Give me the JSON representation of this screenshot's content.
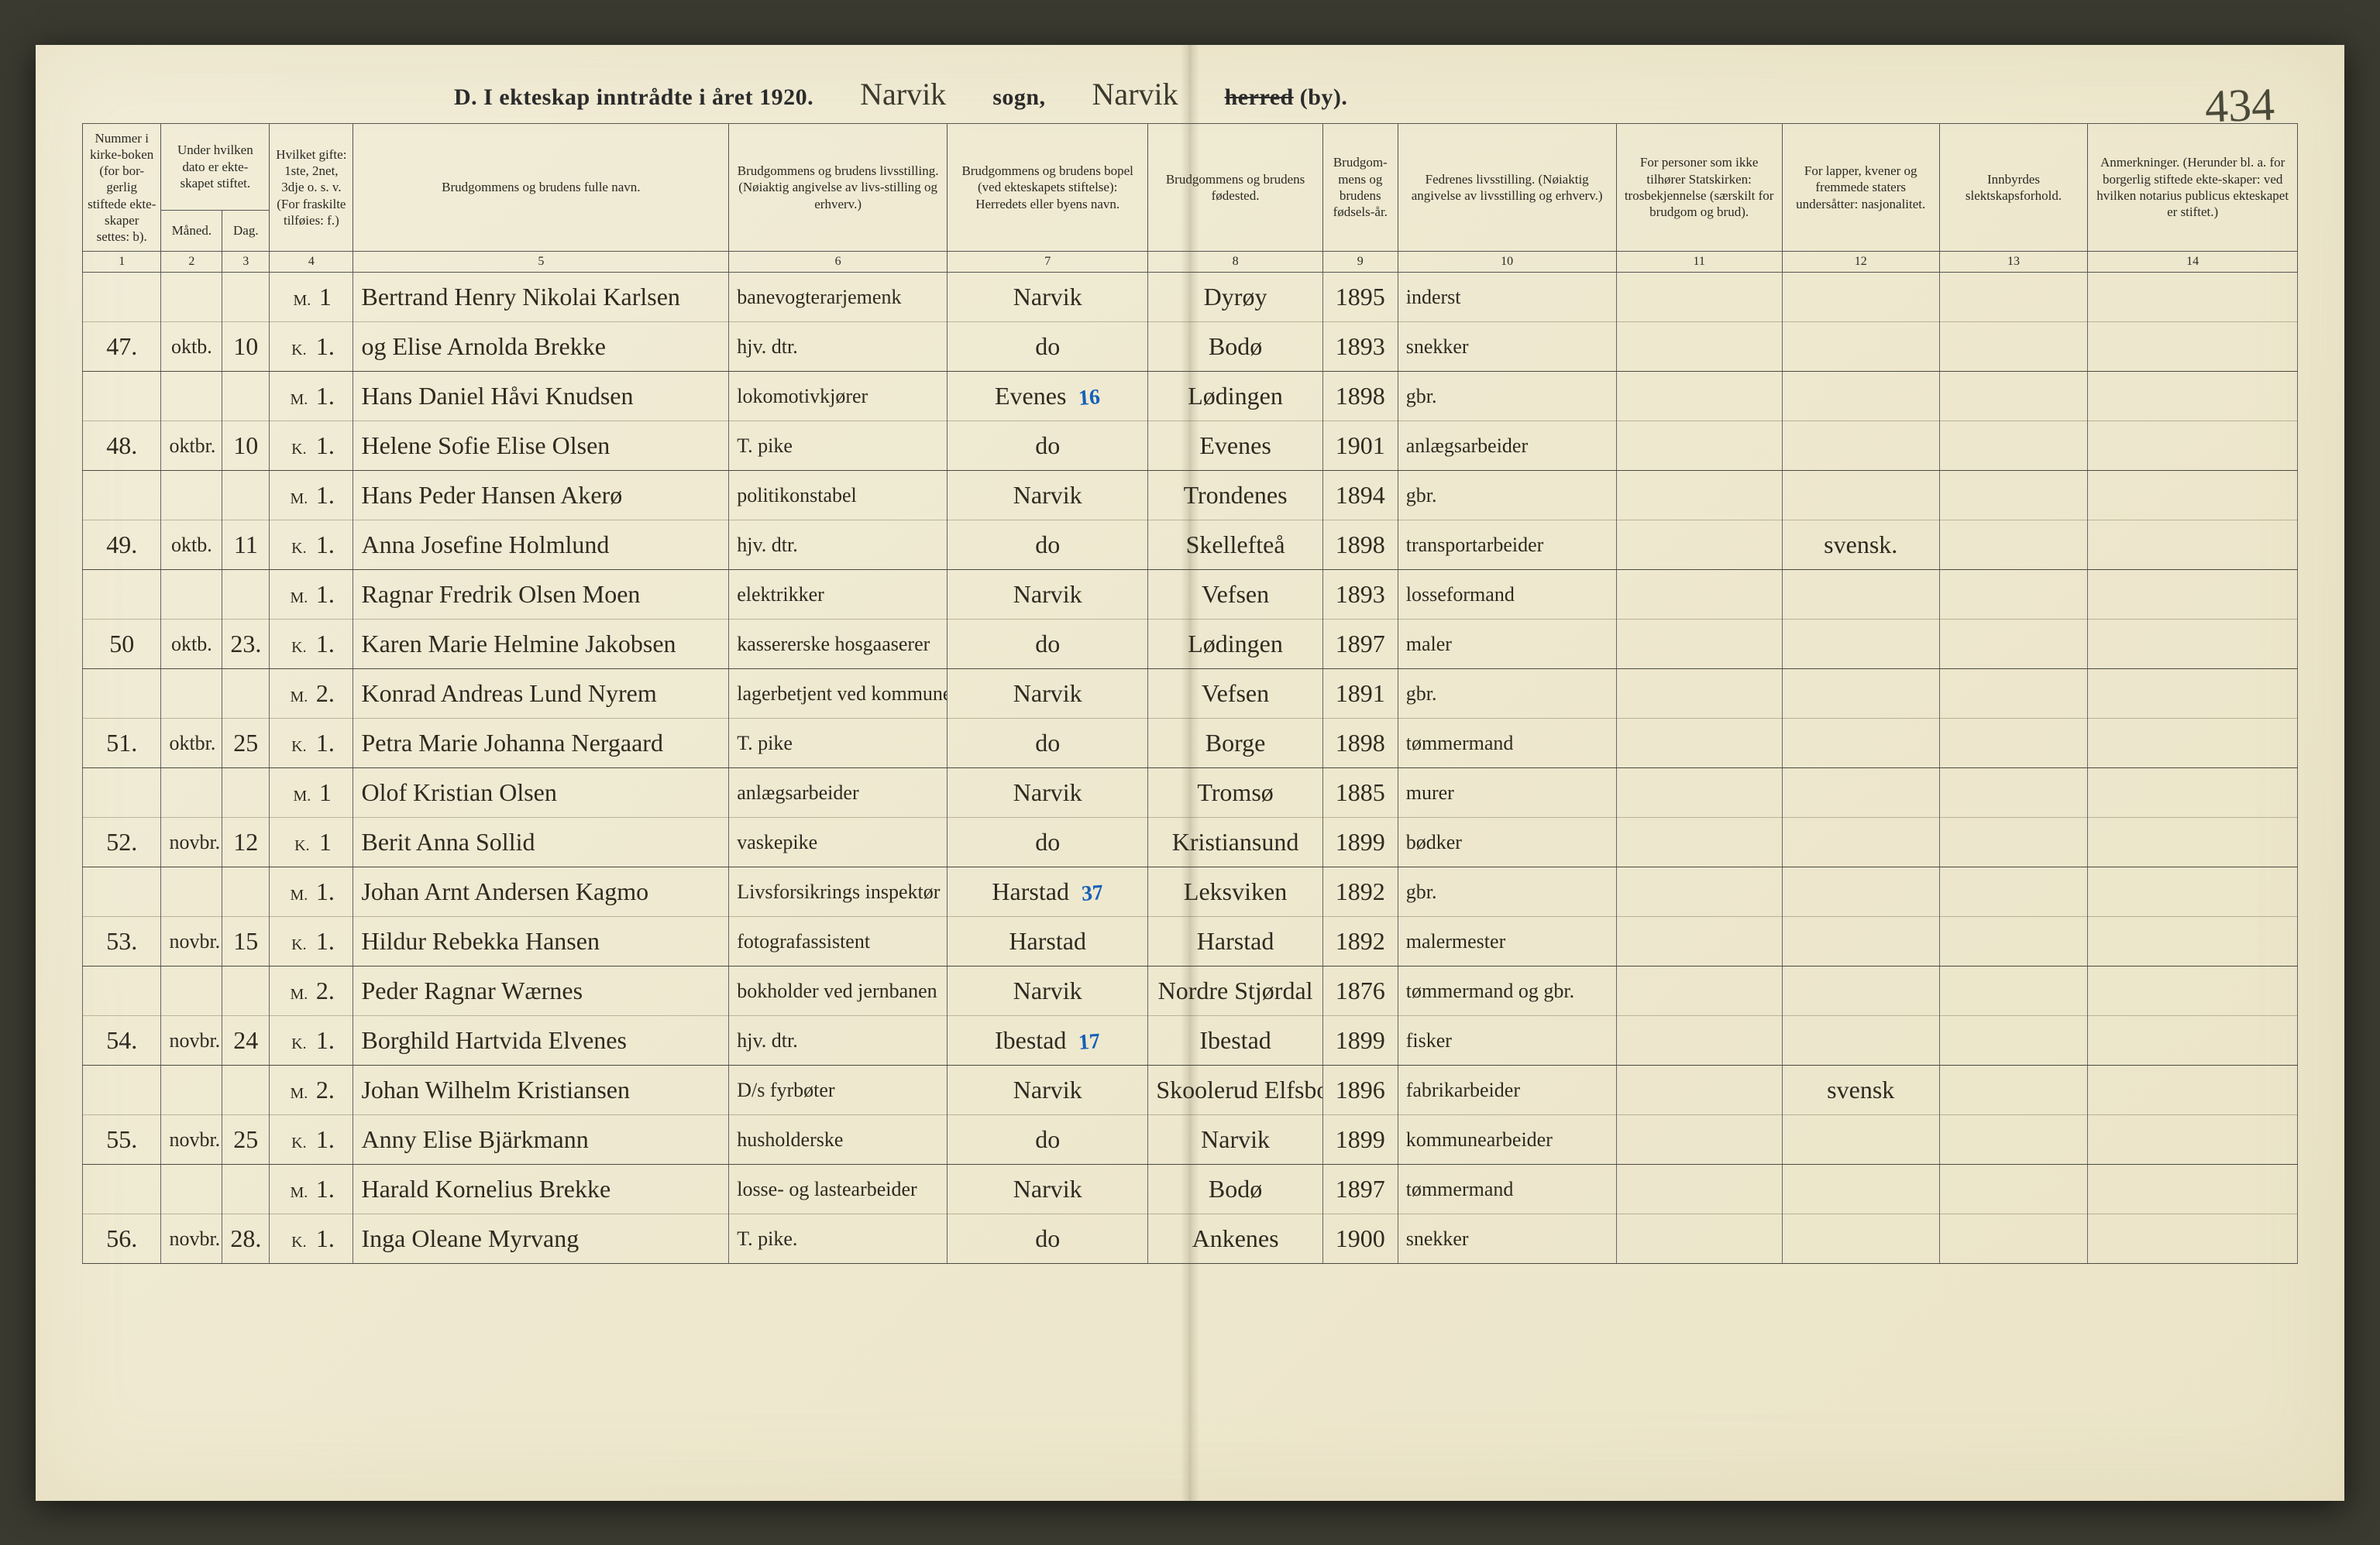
{
  "page_number_handwritten": "434",
  "header": {
    "printed_left": "D.  I ekteskap inntrådte i året 1920.",
    "sogn_value": "Narvik",
    "sogn_label": "sogn,",
    "herred_value": "Narvik",
    "herred_label_strike": "herred",
    "herred_label_tail": " (by)."
  },
  "columns": {
    "c1": "Nummer i kirke-boken (for bor-gerlig stiftede ekte-skaper settes: b).",
    "c2g": "Under hvilken dato er ekte-skapet stiftet.",
    "c2": "Måned.",
    "c3": "Dag.",
    "c4": "Hvilket gifte: 1ste, 2net, 3dje o. s. v. (For fraskilte tilføies: f.)",
    "c5": "Brudgommens og brudens fulle navn.",
    "c6": "Brudgommens og brudens livsstilling. (Nøiaktig angivelse av livs-stilling og erhverv.)",
    "c7": "Brudgommens og brudens bopel (ved ekteskapets stiftelse): Herredets eller byens navn.",
    "c8": "Brudgommens og brudens fødested.",
    "c9": "Brudgom-mens og brudens fødsels-år.",
    "c10": "Fedrenes livsstilling. (Nøiaktig angivelse av livsstilling og erhverv.)",
    "c11": "For personer som ikke tilhører Statskirken: trosbekjennelse (særskilt for brudgom og brud).",
    "c12": "For lapper, kvener og fremmede staters undersåtter: nasjonalitet.",
    "c13": "Innbyrdes slektskapsforhold.",
    "c14": "Anmerkninger. (Herunder bl. a. for borgerlig stiftede ekte-skaper: ved hvilken notarius publicus ekteskapet er stiftet.)"
  },
  "colnums": [
    "1",
    "2",
    "3",
    "4",
    "5",
    "6",
    "7",
    "8",
    "9",
    "10",
    "11",
    "12",
    "13",
    "14"
  ],
  "rows": [
    {
      "num": "",
      "mon": "",
      "day": "",
      "mk": "M.",
      "gift": "1",
      "name": "Bertrand Henry Nikolai Karlsen",
      "occ": "banevogterarjemenk",
      "place": "Narvik",
      "birthpl": "Dyrøy",
      "year": "1895",
      "father": "inderst",
      "rel": "",
      "nat": "",
      "kin": "",
      "note": ""
    },
    {
      "num": "47.",
      "mon": "oktb.",
      "day": "10",
      "mk": "K.",
      "gift": "1.",
      "name": "og Elise Arnolda Brekke",
      "occ": "hjv. dtr.",
      "place": "do",
      "birthpl": "Bodø",
      "year": "1893",
      "father": "snekker",
      "rel": "",
      "nat": "",
      "kin": "",
      "note": "",
      "end": true
    },
    {
      "num": "",
      "mon": "",
      "day": "",
      "mk": "M.",
      "gift": "1.",
      "name": "Hans Daniel Håvi Knudsen",
      "occ": "lokomotivkjører",
      "place": "Evenes",
      "annot": "16",
      "birthpl": "Lødingen",
      "year": "1898",
      "father": "gbr.",
      "rel": "",
      "nat": "",
      "kin": "",
      "note": ""
    },
    {
      "num": "48.",
      "mon": "oktbr.",
      "day": "10",
      "mk": "K.",
      "gift": "1.",
      "name": "Helene Sofie Elise Olsen",
      "occ": "T. pike",
      "place": "do",
      "birthpl": "Evenes",
      "year": "1901",
      "father": "anlægsarbeider",
      "rel": "",
      "nat": "",
      "kin": "",
      "note": "",
      "end": true
    },
    {
      "num": "",
      "mon": "",
      "day": "",
      "mk": "M.",
      "gift": "1.",
      "name": "Hans Peder Hansen Akerø",
      "occ": "politikonstabel",
      "place": "Narvik",
      "birthpl": "Trondenes",
      "year": "1894",
      "father": "gbr.",
      "rel": "",
      "nat": "",
      "kin": "",
      "note": ""
    },
    {
      "num": "49.",
      "mon": "oktb.",
      "day": "11",
      "mk": "K.",
      "gift": "1.",
      "name": "Anna Josefine Holmlund",
      "occ": "hjv. dtr.",
      "place": "do",
      "birthpl": "Skellefteå",
      "year": "1898",
      "father": "transportarbeider",
      "rel": "",
      "nat": "svensk.",
      "kin": "",
      "note": "",
      "end": true
    },
    {
      "num": "",
      "mon": "",
      "day": "",
      "mk": "M.",
      "gift": "1.",
      "name": "Ragnar Fredrik Olsen Moen",
      "occ": "elektrikker",
      "place": "Narvik",
      "birthpl": "Vefsen",
      "year": "1893",
      "father": "losseformand",
      "rel": "",
      "nat": "",
      "kin": "",
      "note": ""
    },
    {
      "num": "50",
      "mon": "oktb.",
      "day": "23.",
      "mk": "K.",
      "gift": "1.",
      "name": "Karen Marie Helmine Jakobsen",
      "occ": "kassererske hosgaaserer",
      "place": "do",
      "birthpl": "Lødingen",
      "year": "1897",
      "father": "maler",
      "rel": "",
      "nat": "",
      "kin": "",
      "note": "",
      "end": true
    },
    {
      "num": "",
      "mon": "",
      "day": "",
      "mk": "M.",
      "gift": "2.",
      "name": "Konrad Andreas Lund Nyrem",
      "occ": "lagerbetjent ved kommunen",
      "place": "Narvik",
      "birthpl": "Vefsen",
      "year": "1891",
      "father": "gbr.",
      "rel": "",
      "nat": "",
      "kin": "",
      "note": ""
    },
    {
      "num": "51.",
      "mon": "oktbr.",
      "day": "25",
      "mk": "K.",
      "gift": "1.",
      "name": "Petra Marie Johanna Nergaard",
      "occ": "T. pike",
      "place": "do",
      "birthpl": "Borge",
      "year": "1898",
      "father": "tømmermand",
      "rel": "",
      "nat": "",
      "kin": "",
      "note": "",
      "end": true
    },
    {
      "num": "",
      "mon": "",
      "day": "",
      "mk": "M.",
      "gift": "1",
      "name": "Olof Kristian Olsen",
      "occ": "anlægsarbeider",
      "place": "Narvik",
      "birthpl": "Tromsø",
      "year": "1885",
      "father": "murer",
      "rel": "",
      "nat": "",
      "kin": "",
      "note": ""
    },
    {
      "num": "52.",
      "mon": "novbr.",
      "day": "12",
      "mk": "K.",
      "gift": "1",
      "name": "Berit Anna Sollid",
      "occ": "vaskepike",
      "place": "do",
      "birthpl": "Kristiansund",
      "year": "1899",
      "father": "bødker",
      "rel": "",
      "nat": "",
      "kin": "",
      "note": "",
      "end": true
    },
    {
      "num": "",
      "mon": "",
      "day": "",
      "mk": "M.",
      "gift": "1.",
      "name": "Johan Arnt Andersen Kagmo",
      "occ": "Livsforsikrings inspektør",
      "place": "Harstad",
      "annot": "37",
      "birthpl": "Leksviken",
      "year": "1892",
      "father": "gbr.",
      "rel": "",
      "nat": "",
      "kin": "",
      "note": ""
    },
    {
      "num": "53.",
      "mon": "novbr.",
      "day": "15",
      "mk": "K.",
      "gift": "1.",
      "name": "Hildur Rebekka Hansen",
      "occ": "fotografassistent",
      "place": "Harstad",
      "birthpl": "Harstad",
      "year": "1892",
      "father": "malermester",
      "rel": "",
      "nat": "",
      "kin": "",
      "note": "",
      "end": true
    },
    {
      "num": "",
      "mon": "",
      "day": "",
      "mk": "M.",
      "gift": "2.",
      "name": "Peder Ragnar Wærnes",
      "occ": "bokholder ved jernbanen",
      "place": "Narvik",
      "birthpl": "Nordre Stjørdal",
      "year": "1876",
      "father": "tømmermand og gbr.",
      "rel": "",
      "nat": "",
      "kin": "",
      "note": ""
    },
    {
      "num": "54.",
      "mon": "novbr.",
      "day": "24",
      "mk": "K.",
      "gift": "1.",
      "name": "Borghild Hartvida Elvenes",
      "occ": "hjv. dtr.",
      "place": "Ibestad",
      "annot": "17",
      "birthpl": "Ibestad",
      "year": "1899",
      "father": "fisker",
      "rel": "",
      "nat": "",
      "kin": "",
      "note": "",
      "end": true
    },
    {
      "num": "",
      "mon": "",
      "day": "",
      "mk": "M.",
      "gift": "2.",
      "name": "Johan Wilhelm Kristiansen",
      "occ": "D/s fyrbøter",
      "place": "Narvik",
      "birthpl": "Skoolerud Elfsborgs lön",
      "year": "1896",
      "father": "fabrikarbeider",
      "rel": "",
      "nat": "svensk",
      "kin": "",
      "note": ""
    },
    {
      "num": "55.",
      "mon": "novbr.",
      "day": "25",
      "mk": "K.",
      "gift": "1.",
      "name": "Anny Elise Bjärkmann",
      "occ": "husholderske",
      "place": "do",
      "birthpl": "Narvik",
      "year": "1899",
      "father": "kommunearbeider",
      "rel": "",
      "nat": "",
      "kin": "",
      "note": "",
      "end": true
    },
    {
      "num": "",
      "mon": "",
      "day": "",
      "mk": "M.",
      "gift": "1.",
      "name": "Harald Kornelius Brekke",
      "occ": "losse- og lastearbeider",
      "place": "Narvik",
      "birthpl": "Bodø",
      "year": "1897",
      "father": "tømmermand",
      "rel": "",
      "nat": "",
      "kin": "",
      "note": ""
    },
    {
      "num": "56.",
      "mon": "novbr.",
      "day": "28.",
      "mk": "K.",
      "gift": "1.",
      "name": "Inga Oleane Myrvang",
      "occ": "T. pike.",
      "place": "do",
      "birthpl": "Ankenes",
      "year": "1900",
      "father": "snekker",
      "rel": "",
      "nat": "",
      "kin": "",
      "note": "",
      "end": true
    }
  ],
  "style": {
    "page_bg": "#f0ead3",
    "rule_color": "#555555",
    "ink_color": "#2e2a20",
    "blue_annot": "#1560b8",
    "script_font": "Brush Script MT",
    "printed_font": "Georgia",
    "header_fontsize_pt": 21,
    "body_script_pt": 24,
    "colhead_pt": 12
  }
}
